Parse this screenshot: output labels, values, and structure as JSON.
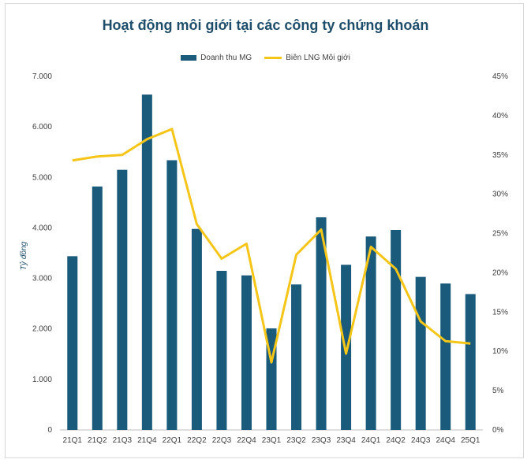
{
  "chart_data": {
    "type": "bar+line",
    "title": "Hoạt động môi giới tại các công ty chứng khoán",
    "ylabel": "Tỷ đồng",
    "categories": [
      "21Q1",
      "21Q2",
      "21Q3",
      "21Q4",
      "22Q1",
      "22Q2",
      "22Q3",
      "22Q4",
      "23Q1",
      "23Q2",
      "23Q3",
      "23Q4",
      "24Q1",
      "24Q2",
      "24Q3",
      "24Q4",
      "25Q1"
    ],
    "series": [
      {
        "name": "Doanh thu MG",
        "type": "bar",
        "axis": "left",
        "color": "#1a5a7a",
        "values": [
          3440,
          4820,
          5150,
          6640,
          5340,
          3980,
          3150,
          3060,
          2010,
          2880,
          4210,
          3270,
          3830,
          3960,
          3030,
          2900,
          2690
        ]
      },
      {
        "name": "Biên LNG Môi giới",
        "type": "line",
        "axis": "right",
        "color": "#f5c518",
        "values": [
          34.3,
          34.8,
          35.0,
          37.0,
          38.3,
          26.2,
          21.8,
          23.7,
          8.6,
          22.3,
          25.5,
          9.7,
          23.3,
          20.5,
          13.8,
          11.3,
          11.0
        ]
      }
    ],
    "left_axis": {
      "range": [
        0,
        7000
      ],
      "ticks": [
        "0",
        "1.000",
        "2.000",
        "3.000",
        "4.000",
        "5.000",
        "6.000",
        "7.000"
      ]
    },
    "right_axis": {
      "range": [
        0,
        45
      ],
      "ticks": [
        "0%",
        "5%",
        "10%",
        "15%",
        "20%",
        "25%",
        "30%",
        "35%",
        "40%",
        "45%"
      ]
    },
    "legend": [
      "Doanh thu MG",
      "Biên LNG Môi giới"
    ],
    "legend_position": "top-center"
  }
}
